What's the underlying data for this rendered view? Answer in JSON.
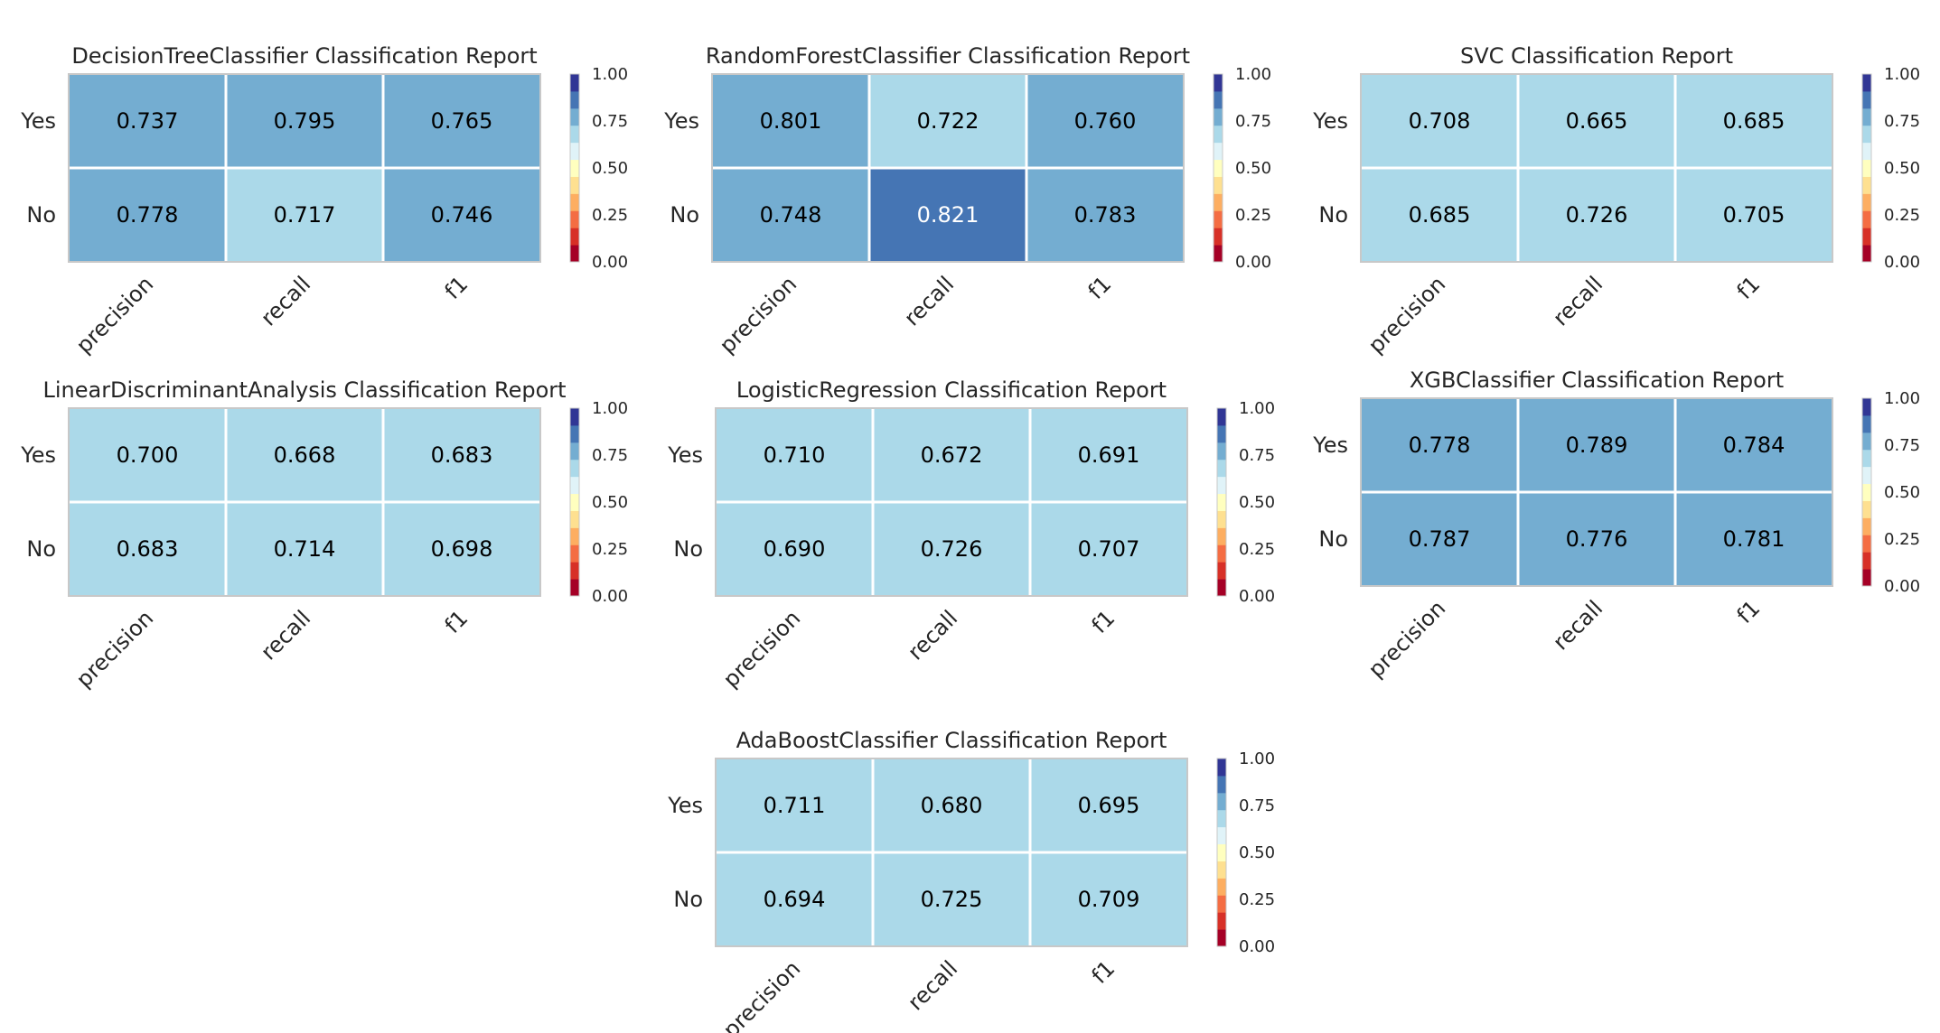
{
  "chart_data": [
    {
      "type": "heatmap",
      "title": "DecisionTreeClassifier Classification Report",
      "rows": [
        "Yes",
        "No"
      ],
      "columns": [
        "precision",
        "recall",
        "f1"
      ],
      "values": [
        [
          0.737,
          0.795,
          0.765
        ],
        [
          0.778,
          0.717,
          0.746
        ]
      ],
      "labels": [
        [
          "0.737",
          "0.795",
          "0.765"
        ],
        [
          "0.778",
          "0.717",
          "0.746"
        ]
      ],
      "colorbar": {
        "range": [
          0,
          1
        ],
        "ticks": [
          "0.00",
          "0.25",
          "0.50",
          "0.75",
          "1.00"
        ]
      }
    },
    {
      "type": "heatmap",
      "title": "RandomForestClassifier Classification Report",
      "rows": [
        "Yes",
        "No"
      ],
      "columns": [
        "precision",
        "recall",
        "f1"
      ],
      "values": [
        [
          0.801,
          0.722,
          0.76
        ],
        [
          0.748,
          0.821,
          0.783
        ]
      ],
      "labels": [
        [
          "0.801",
          "0.722",
          "0.760"
        ],
        [
          "0.748",
          "0.821",
          "0.783"
        ]
      ],
      "colorbar": {
        "range": [
          0,
          1
        ],
        "ticks": [
          "0.00",
          "0.25",
          "0.50",
          "0.75",
          "1.00"
        ]
      }
    },
    {
      "type": "heatmap",
      "title": "SVC Classification Report",
      "rows": [
        "Yes",
        "No"
      ],
      "columns": [
        "precision",
        "recall",
        "f1"
      ],
      "values": [
        [
          0.708,
          0.665,
          0.685
        ],
        [
          0.685,
          0.726,
          0.705
        ]
      ],
      "labels": [
        [
          "0.708",
          "0.665",
          "0.685"
        ],
        [
          "0.685",
          "0.726",
          "0.705"
        ]
      ],
      "colorbar": {
        "range": [
          0,
          1
        ],
        "ticks": [
          "0.00",
          "0.25",
          "0.50",
          "0.75",
          "1.00"
        ]
      }
    },
    {
      "type": "heatmap",
      "title": "LinearDiscriminantAnalysis Classification Report",
      "rows": [
        "Yes",
        "No"
      ],
      "columns": [
        "precision",
        "recall",
        "f1"
      ],
      "values": [
        [
          0.7,
          0.668,
          0.683
        ],
        [
          0.683,
          0.714,
          0.698
        ]
      ],
      "labels": [
        [
          "0.700",
          "0.668",
          "0.683"
        ],
        [
          "0.683",
          "0.714",
          "0.698"
        ]
      ],
      "colorbar": {
        "range": [
          0,
          1
        ],
        "ticks": [
          "0.00",
          "0.25",
          "0.50",
          "0.75",
          "1.00"
        ]
      }
    },
    {
      "type": "heatmap",
      "title": "LogisticRegression Classification Report",
      "rows": [
        "Yes",
        "No"
      ],
      "columns": [
        "precision",
        "recall",
        "f1"
      ],
      "values": [
        [
          0.71,
          0.672,
          0.691
        ],
        [
          0.69,
          0.726,
          0.707
        ]
      ],
      "labels": [
        [
          "0.710",
          "0.672",
          "0.691"
        ],
        [
          "0.690",
          "0.726",
          "0.707"
        ]
      ],
      "colorbar": {
        "range": [
          0,
          1
        ],
        "ticks": [
          "0.00",
          "0.25",
          "0.50",
          "0.75",
          "1.00"
        ]
      }
    },
    {
      "type": "heatmap",
      "title": "XGBClassifier Classification Report",
      "rows": [
        "Yes",
        "No"
      ],
      "columns": [
        "precision",
        "recall",
        "f1"
      ],
      "values": [
        [
          0.778,
          0.789,
          0.784
        ],
        [
          0.787,
          0.776,
          0.781
        ]
      ],
      "labels": [
        [
          "0.778",
          "0.789",
          "0.784"
        ],
        [
          "0.787",
          "0.776",
          "0.781"
        ]
      ],
      "colorbar": {
        "range": [
          0,
          1
        ],
        "ticks": [
          "0.00",
          "0.25",
          "0.50",
          "0.75",
          "1.00"
        ]
      }
    },
    {
      "type": "heatmap",
      "title": "AdaBoostClassifier Classification Report",
      "rows": [
        "Yes",
        "No"
      ],
      "columns": [
        "precision",
        "recall",
        "f1"
      ],
      "values": [
        [
          0.711,
          0.68,
          0.695
        ],
        [
          0.694,
          0.725,
          0.709
        ]
      ],
      "labels": [
        [
          "0.711",
          "0.680",
          "0.695"
        ],
        [
          "0.694",
          "0.725",
          "0.709"
        ]
      ],
      "colorbar": {
        "range": [
          0,
          1
        ],
        "ticks": [
          "0.00",
          "0.25",
          "0.50",
          "0.75",
          "1.00"
        ]
      }
    }
  ],
  "colors": {
    "colormap": [
      "#a50026",
      "#d73027",
      "#f46d43",
      "#fdae61",
      "#fee090",
      "#ffffbf",
      "#e0f3f8",
      "#abd9e9",
      "#74add1",
      "#4575b4",
      "#313695"
    ],
    "cell_text_dark": "#000000",
    "cell_text_light": "#ffffff",
    "grid_line": "#ffffff",
    "frame": "#c8c8c8"
  }
}
